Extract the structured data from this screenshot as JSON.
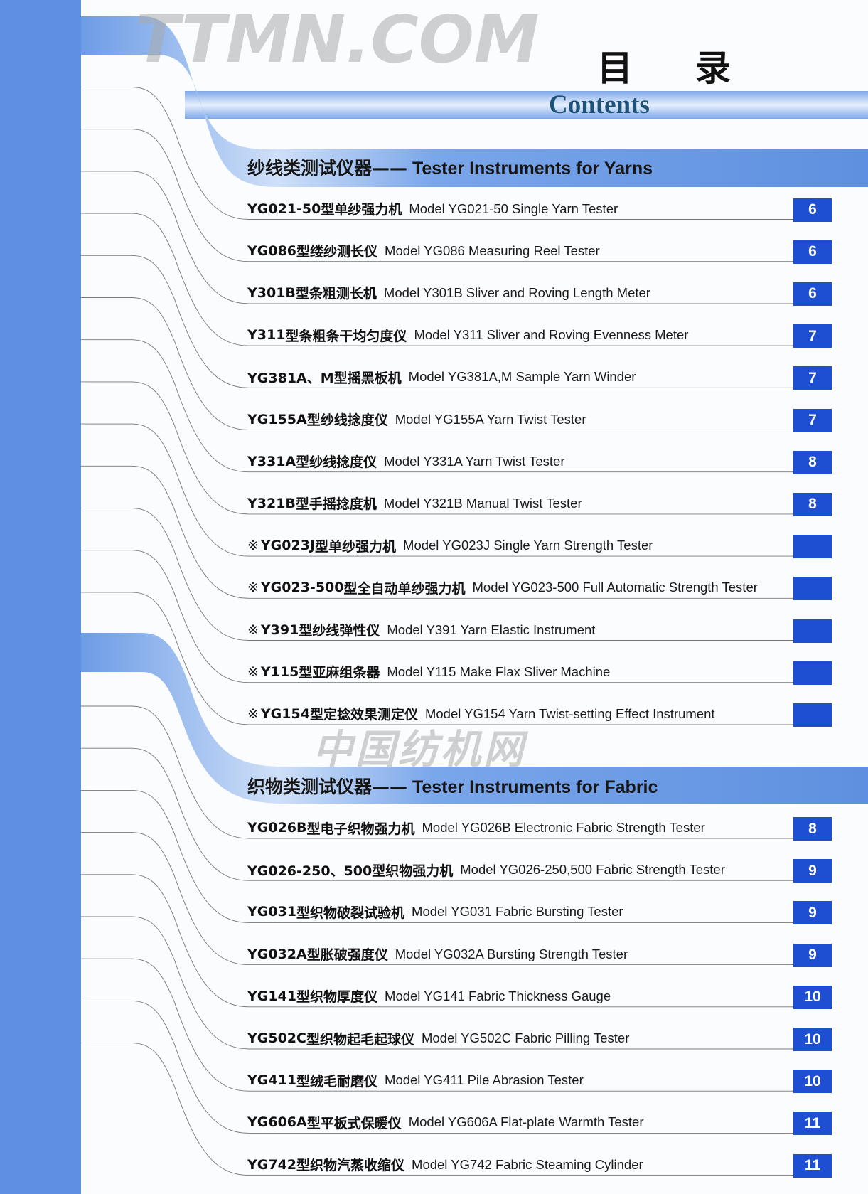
{
  "header": {
    "title_cn_1": "目",
    "title_cn_2": "录",
    "title_en": "Contents"
  },
  "colors": {
    "strip": "#5d90e0",
    "page_box": "#1e4fd2",
    "contents_title": "#1e5277"
  },
  "sections": [
    {
      "title_cn": "纱线类测试仪器——",
      "title_en": " Tester Instruments for Yarns",
      "items": [
        {
          "mark": "",
          "model": "YG021-50",
          "cn": "型单纱强力机",
          "en": "Model YG021-50 Single Yarn Tester",
          "page": "6"
        },
        {
          "mark": "",
          "model": "YG086",
          "cn": "型缕纱测长仪",
          "en": "Model YG086 Measuring Reel Tester",
          "page": "6"
        },
        {
          "mark": "",
          "model": "Y301B",
          "cn": "型条粗测长机",
          "en": "Model Y301B Sliver and Roving Length Meter",
          "page": "6"
        },
        {
          "mark": "",
          "model": "Y311",
          "cn": "型条粗条干均匀度仪",
          "en": "Model Y311 Sliver and Roving Evenness Meter",
          "page": "7"
        },
        {
          "mark": "",
          "model": "YG381A、M",
          "cn": "型摇黑板机",
          "en": "Model YG381A,M Sample Yarn Winder",
          "page": "7"
        },
        {
          "mark": "",
          "model": "YG155A",
          "cn": "型纱线捻度仪",
          "en": "Model YG155A  Yarn Twist Tester",
          "page": "7"
        },
        {
          "mark": "",
          "model": "Y331A",
          "cn": "型纱线捻度仪",
          "en": "Model Y331A  Yarn Twist Tester",
          "page": "8"
        },
        {
          "mark": "",
          "model": "Y321B",
          "cn": "型手摇捻度机",
          "en": "Model Y321B Manual Twist Tester",
          "page": "8"
        },
        {
          "mark": "※",
          "model": "YG023J",
          "cn": "型单纱强力机",
          "en": "Model YG023J Single Yarn Strength Tester",
          "page": ""
        },
        {
          "mark": "※",
          "model": "YG023-500",
          "cn": "型全自动单纱强力机",
          "en": "Model YG023-500 Full Automatic Strength Tester",
          "page": ""
        },
        {
          "mark": "※",
          "model": "Y391",
          "cn": "型纱线弹性仪",
          "en": "Model Y391 Yarn Elastic Instrument",
          "page": ""
        },
        {
          "mark": "※",
          "model": "Y115",
          "cn": "型亚麻组条器",
          "en": "Model Y115 Make Flax Sliver Machine",
          "page": ""
        },
        {
          "mark": "※",
          "model": "YG154",
          "cn": "型定捻效果测定仪",
          "en": "Model YG154 Yarn Twist-setting Effect Instrument",
          "page": ""
        }
      ]
    },
    {
      "title_cn": "织物类测试仪器——",
      "title_en": " Tester Instruments for Fabric",
      "items": [
        {
          "mark": "",
          "model": "YG026B",
          "cn": "型电子织物强力机",
          "en": "Model YG026B Electronic Fabric Strength Tester",
          "page": "8"
        },
        {
          "mark": "",
          "model": "YG026-250、500",
          "cn": "型织物强力机",
          "en": "Model YG026-250,500 Fabric Strength Tester",
          "page": "9"
        },
        {
          "mark": "",
          "model": "YG031",
          "cn": "型织物破裂试验机",
          "en": "Model YG031 Fabric Bursting Tester",
          "page": "9"
        },
        {
          "mark": "",
          "model": "YG032A",
          "cn": "型胀破强度仪",
          "en": "Model YG032A Bursting Strength Tester",
          "page": "9"
        },
        {
          "mark": "",
          "model": "YG141",
          "cn": "型织物厚度仪",
          "en": "Model YG141 Fabric Thickness Gauge",
          "page": "10"
        },
        {
          "mark": "",
          "model": "YG502C",
          "cn": "型织物起毛起球仪",
          "en": "Model YG502C Fabric Pilling Tester",
          "page": "10"
        },
        {
          "mark": "",
          "model": "YG411",
          "cn": "型绒毛耐磨仪",
          "en": "Model YG411 Pile Abrasion Tester",
          "page": "10"
        },
        {
          "mark": "",
          "model": "YG606A",
          "cn": "型平板式保暖仪",
          "en": "Model YG606A Flat-plate Warmth Tester",
          "page": "11"
        },
        {
          "mark": "",
          "model": "YG742",
          "cn": "型织物汽蒸收缩仪",
          "en": "Model YG742 Fabric Steaming Cylinder",
          "page": "11"
        }
      ]
    }
  ],
  "watermark": {
    "line1": "TTMN.COM",
    "line2": "中国纺机网"
  }
}
